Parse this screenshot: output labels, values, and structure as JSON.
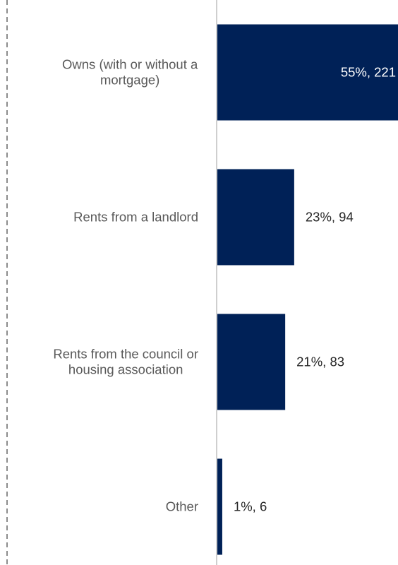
{
  "chart_data": {
    "type": "bar",
    "orientation": "horizontal",
    "categories": [
      [
        "Owns (with or without a",
        "mortgage)"
      ],
      [
        "Rents from a landlord"
      ],
      [
        "Rents from the council or",
        "housing association"
      ],
      [
        "Other"
      ]
    ],
    "series": [
      {
        "values": [
          221,
          94,
          83,
          6
        ],
        "percent": [
          55,
          23,
          21,
          1
        ],
        "data_labels": [
          "55%, 221",
          "23%, 94",
          "21%, 83",
          "1%, 6"
        ]
      }
    ],
    "xlim": [
      0,
      221
    ],
    "grid": false,
    "legend": "none"
  },
  "colors": {
    "bar": "#002157",
    "axis_line": "#bfbfbf",
    "left_border": "#8c8c8c",
    "category_text": "#595959",
    "label_outside": "#262626",
    "label_inside": "#ffffff"
  }
}
